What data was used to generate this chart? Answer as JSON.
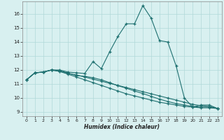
{
  "xlabel": "Humidex (Indice chaleur)",
  "bg_color": "#d8f0f0",
  "grid_color": "#b0d8d8",
  "line_color": "#1e7070",
  "xlim": [
    -0.5,
    23.5
  ],
  "ylim": [
    8.7,
    16.9
  ],
  "yticks": [
    9,
    10,
    11,
    12,
    13,
    14,
    15,
    16
  ],
  "xticks": [
    0,
    1,
    2,
    3,
    4,
    5,
    6,
    7,
    8,
    9,
    10,
    11,
    12,
    13,
    14,
    15,
    16,
    17,
    18,
    19,
    20,
    21,
    22,
    23
  ],
  "series1": [
    [
      0,
      11.3
    ],
    [
      1,
      11.8
    ],
    [
      2,
      11.85
    ],
    [
      3,
      12.0
    ],
    [
      4,
      12.0
    ],
    [
      5,
      11.85
    ],
    [
      6,
      11.8
    ],
    [
      7,
      11.75
    ],
    [
      8,
      12.6
    ],
    [
      9,
      12.1
    ],
    [
      10,
      13.3
    ],
    [
      11,
      14.4
    ],
    [
      12,
      15.3
    ],
    [
      13,
      15.3
    ],
    [
      14,
      16.6
    ],
    [
      15,
      15.7
    ],
    [
      16,
      14.1
    ],
    [
      17,
      14.0
    ],
    [
      18,
      12.3
    ],
    [
      19,
      10.0
    ],
    [
      20,
      9.35
    ],
    [
      21,
      9.5
    ],
    [
      22,
      9.5
    ],
    [
      23,
      9.25
    ]
  ],
  "series2": [
    [
      0,
      11.3
    ],
    [
      1,
      11.8
    ],
    [
      2,
      11.85
    ],
    [
      3,
      12.0
    ],
    [
      4,
      11.95
    ],
    [
      5,
      11.78
    ],
    [
      6,
      11.6
    ],
    [
      7,
      11.55
    ],
    [
      8,
      11.45
    ],
    [
      9,
      11.3
    ],
    [
      10,
      11.1
    ],
    [
      11,
      10.88
    ],
    [
      12,
      10.7
    ],
    [
      13,
      10.5
    ],
    [
      14,
      10.32
    ],
    [
      15,
      10.12
    ],
    [
      16,
      9.92
    ],
    [
      17,
      9.75
    ],
    [
      18,
      9.6
    ],
    [
      19,
      9.5
    ],
    [
      20,
      9.4
    ],
    [
      21,
      9.35
    ],
    [
      22,
      9.35
    ],
    [
      23,
      9.25
    ]
  ],
  "series3": [
    [
      0,
      11.3
    ],
    [
      1,
      11.8
    ],
    [
      2,
      11.85
    ],
    [
      3,
      12.0
    ],
    [
      4,
      11.9
    ],
    [
      5,
      11.75
    ],
    [
      6,
      11.65
    ],
    [
      7,
      11.5
    ],
    [
      8,
      11.35
    ],
    [
      9,
      11.2
    ],
    [
      10,
      11.05
    ],
    [
      11,
      10.9
    ],
    [
      12,
      10.75
    ],
    [
      13,
      10.6
    ],
    [
      14,
      10.45
    ],
    [
      15,
      10.3
    ],
    [
      16,
      10.15
    ],
    [
      17,
      10.0
    ],
    [
      18,
      9.85
    ],
    [
      19,
      9.7
    ],
    [
      20,
      9.55
    ],
    [
      21,
      9.45
    ],
    [
      22,
      9.4
    ],
    [
      23,
      9.25
    ]
  ],
  "series4": [
    [
      0,
      11.3
    ],
    [
      1,
      11.8
    ],
    [
      2,
      11.85
    ],
    [
      3,
      12.0
    ],
    [
      4,
      11.9
    ],
    [
      5,
      11.7
    ],
    [
      6,
      11.5
    ],
    [
      7,
      11.3
    ],
    [
      8,
      11.1
    ],
    [
      9,
      10.9
    ],
    [
      10,
      10.7
    ],
    [
      11,
      10.5
    ],
    [
      12,
      10.3
    ],
    [
      13,
      10.15
    ],
    [
      14,
      10.0
    ],
    [
      15,
      9.85
    ],
    [
      16,
      9.7
    ],
    [
      17,
      9.6
    ],
    [
      18,
      9.5
    ],
    [
      19,
      9.4
    ],
    [
      20,
      9.35
    ],
    [
      21,
      9.3
    ],
    [
      22,
      9.3
    ],
    [
      23,
      9.25
    ]
  ]
}
